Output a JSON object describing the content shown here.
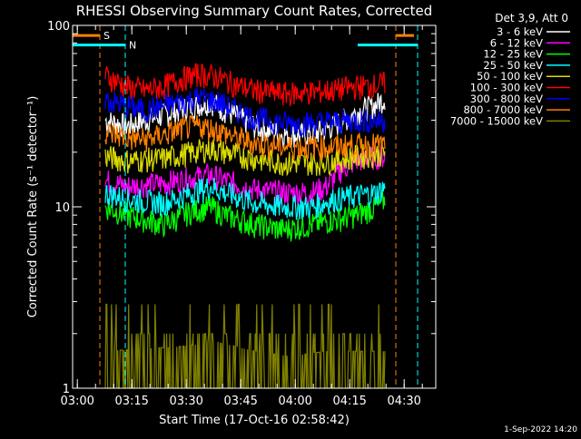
{
  "chart_data": {
    "type": "line",
    "title": "RHESSI Observing Summary Count Rates, Corrected",
    "xlabel": "Start Time (17-Oct-16 02:58:42)",
    "ylabel": "Corrected Count Rate (s⁻¹ detector⁻¹)",
    "x_start_minutes": 0,
    "x_range_minutes": [
      0,
      100
    ],
    "x_tick_labels": [
      "03:00",
      "03:15",
      "03:30",
      "03:45",
      "04:00",
      "04:15",
      "04:30"
    ],
    "x_tick_minutes": [
      1.3,
      16.3,
      31.3,
      46.3,
      61.3,
      76.3,
      91.3
    ],
    "y_scale": "log",
    "ylim": [
      1,
      100
    ],
    "y_tick_labels": [
      "1",
      "10",
      "100"
    ],
    "y_tick_values": [
      1,
      10,
      100
    ],
    "legend_title": "Det 3,9, Att 0",
    "legend_position": "top-right",
    "footer": "1-Sep-2022 14:20",
    "annotations": [
      {
        "label": "S",
        "color": "#ff8000",
        "bar_minutes": [
          0,
          7.5
        ],
        "bar2_minutes": [
          89,
          94
        ],
        "line_minutes": [
          7.5,
          89
        ],
        "y": 88
      },
      {
        "label": "N",
        "color": "#00ffff",
        "bar_minutes": [
          0,
          14.5
        ],
        "bar2_minutes": [
          78.5,
          95
        ],
        "line_minutes": [
          14.5,
          95
        ],
        "y": 78
      }
    ],
    "series": [
      {
        "name": "3 - 6 keV",
        "color": "#ffffff",
        "x_range": [
          9,
          86
        ],
        "values": [
          [
            9,
            30
          ],
          [
            15,
            28
          ],
          [
            25,
            32
          ],
          [
            33,
            36
          ],
          [
            38,
            38
          ],
          [
            42,
            34
          ],
          [
            50,
            28
          ],
          [
            58,
            25
          ],
          [
            66,
            25
          ],
          [
            72,
            28
          ],
          [
            78,
            33
          ],
          [
            84,
            37
          ],
          [
            86,
            40
          ]
        ]
      },
      {
        "name": "6 - 12 keV",
        "color": "#ff00ff",
        "x_range": [
          9,
          86
        ],
        "values": [
          [
            9,
            14
          ],
          [
            15,
            13
          ],
          [
            25,
            13.5
          ],
          [
            33,
            14.5
          ],
          [
            38,
            15
          ],
          [
            42,
            14
          ],
          [
            50,
            12.5
          ],
          [
            58,
            12
          ],
          [
            66,
            12
          ],
          [
            70,
            13
          ],
          [
            74,
            16
          ],
          [
            78,
            18
          ],
          [
            84,
            19
          ],
          [
            86,
            19
          ]
        ]
      },
      {
        "name": "12 - 25 keV",
        "color": "#00ff00",
        "x_range": [
          9,
          86
        ],
        "values": [
          [
            9,
            10
          ],
          [
            15,
            9
          ],
          [
            25,
            8
          ],
          [
            33,
            9.5
          ],
          [
            38,
            10
          ],
          [
            42,
            9
          ],
          [
            50,
            8
          ],
          [
            58,
            7.5
          ],
          [
            66,
            8
          ],
          [
            72,
            8.5
          ],
          [
            78,
            9
          ],
          [
            84,
            10
          ],
          [
            86,
            11
          ]
        ]
      },
      {
        "name": "25 - 50 keV",
        "color": "#00ffff",
        "x_range": [
          9,
          86
        ],
        "values": [
          [
            9,
            12
          ],
          [
            15,
            11
          ],
          [
            25,
            10.5
          ],
          [
            33,
            12
          ],
          [
            38,
            13
          ],
          [
            42,
            12
          ],
          [
            50,
            10.5
          ],
          [
            58,
            10
          ],
          [
            66,
            10
          ],
          [
            72,
            11
          ],
          [
            78,
            11.5
          ],
          [
            84,
            12
          ],
          [
            86,
            13
          ]
        ]
      },
      {
        "name": "50 - 100 keV",
        "color": "#dddd00",
        "x_range": [
          9,
          86
        ],
        "values": [
          [
            9,
            19
          ],
          [
            15,
            18
          ],
          [
            25,
            18.5
          ],
          [
            33,
            20
          ],
          [
            38,
            21
          ],
          [
            42,
            20
          ],
          [
            50,
            18.5
          ],
          [
            58,
            17.5
          ],
          [
            66,
            17.5
          ],
          [
            72,
            18
          ],
          [
            78,
            19
          ],
          [
            84,
            19.5
          ],
          [
            86,
            20
          ]
        ]
      },
      {
        "name": "100 - 300 keV",
        "color": "#ff0000",
        "x_range": [
          9,
          86
        ],
        "values": [
          [
            9,
            53
          ],
          [
            15,
            46
          ],
          [
            20,
            44
          ],
          [
            25,
            46
          ],
          [
            30,
            51
          ],
          [
            35,
            54
          ],
          [
            40,
            52
          ],
          [
            45,
            47
          ],
          [
            50,
            44
          ],
          [
            58,
            42
          ],
          [
            66,
            43
          ],
          [
            72,
            44
          ],
          [
            78,
            46
          ],
          [
            84,
            47
          ],
          [
            86,
            48
          ]
        ]
      },
      {
        "name": "300 - 800 keV",
        "color": "#0000ff",
        "x_range": [
          9,
          86
        ],
        "values": [
          [
            9,
            39
          ],
          [
            15,
            36
          ],
          [
            20,
            34
          ],
          [
            25,
            36
          ],
          [
            30,
            38
          ],
          [
            35,
            40
          ],
          [
            40,
            38
          ],
          [
            45,
            34
          ],
          [
            50,
            31
          ],
          [
            58,
            29
          ],
          [
            66,
            29
          ],
          [
            72,
            29.5
          ],
          [
            78,
            30
          ],
          [
            84,
            30
          ],
          [
            86,
            30
          ]
        ]
      },
      {
        "name": "800 - 7000 keV",
        "color": "#ff8000",
        "x_range": [
          9,
          86
        ],
        "values": [
          [
            9,
            26
          ],
          [
            15,
            24
          ],
          [
            20,
            23.5
          ],
          [
            25,
            25
          ],
          [
            30,
            27
          ],
          [
            35,
            28
          ],
          [
            40,
            26.5
          ],
          [
            45,
            24
          ],
          [
            50,
            22.5
          ],
          [
            58,
            21.5
          ],
          [
            66,
            21.5
          ],
          [
            72,
            21.5
          ],
          [
            78,
            22
          ],
          [
            84,
            22
          ],
          [
            86,
            22
          ]
        ]
      },
      {
        "name": "7000 - 15000 keV",
        "color": "#808000",
        "x_range": [
          9,
          86
        ],
        "values": [
          [
            9,
            1.6
          ],
          [
            30,
            1.7
          ],
          [
            40,
            1.8
          ],
          [
            50,
            1.6
          ],
          [
            60,
            1.5
          ],
          [
            70,
            1.6
          ],
          [
            80,
            1.6
          ],
          [
            86,
            1.6
          ]
        ]
      }
    ]
  }
}
